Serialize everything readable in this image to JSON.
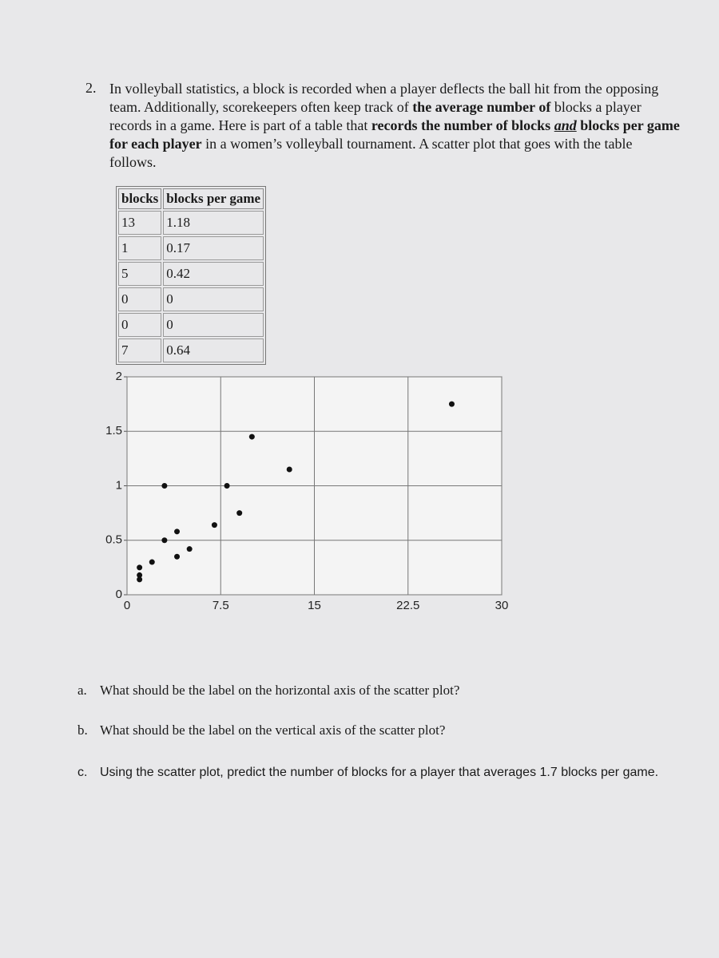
{
  "problem": {
    "number": "2.",
    "segments": [
      "In volleyball statistics, a block is recorded when a player deflects the ball hit from the opposing team. Additionally, scorekeepers often keep track of ",
      "the average number of",
      " blocks a player records in a game. Here is part of a table that ",
      "records the number of blocks",
      "and",
      "blocks per game for each player",
      " in a women’s volleyball tournament. A scatter plot that goes with the table follows."
    ]
  },
  "table": {
    "headers": [
      "blocks",
      "blocks per game"
    ],
    "rows": [
      [
        13,
        1.18
      ],
      [
        1,
        0.17
      ],
      [
        5,
        0.42
      ],
      [
        0,
        0
      ],
      [
        0,
        0
      ],
      [
        7,
        0.64
      ]
    ]
  },
  "chart_data": {
    "type": "scatter",
    "x": [
      26,
      10,
      13,
      3,
      8,
      9,
      7,
      4,
      3,
      5,
      4,
      2,
      1,
      1,
      1
    ],
    "values": [
      1.75,
      1.45,
      1.15,
      1,
      1,
      0.75,
      0.64,
      0.58,
      0.5,
      0.42,
      0.35,
      0.3,
      0.25,
      0.18,
      0.14
    ],
    "color": "#111111",
    "xlim": [
      0,
      30
    ],
    "xticks": [
      0,
      7.5,
      15,
      22.5,
      30
    ],
    "ylim": [
      0,
      2
    ],
    "yticks": [
      0,
      0.5,
      1,
      1.5,
      2
    ],
    "grid": true
  },
  "questions": [
    {
      "label": "a.",
      "text": "What should be the label on the horizontal axis of the scatter plot?"
    },
    {
      "label": "b.",
      "text": "What should be the label on the vertical axis of the scatter plot?"
    },
    {
      "label": "c.",
      "text": "Using the scatter plot, predict the number of blocks for a player that averages 1.7 blocks per game."
    }
  ]
}
